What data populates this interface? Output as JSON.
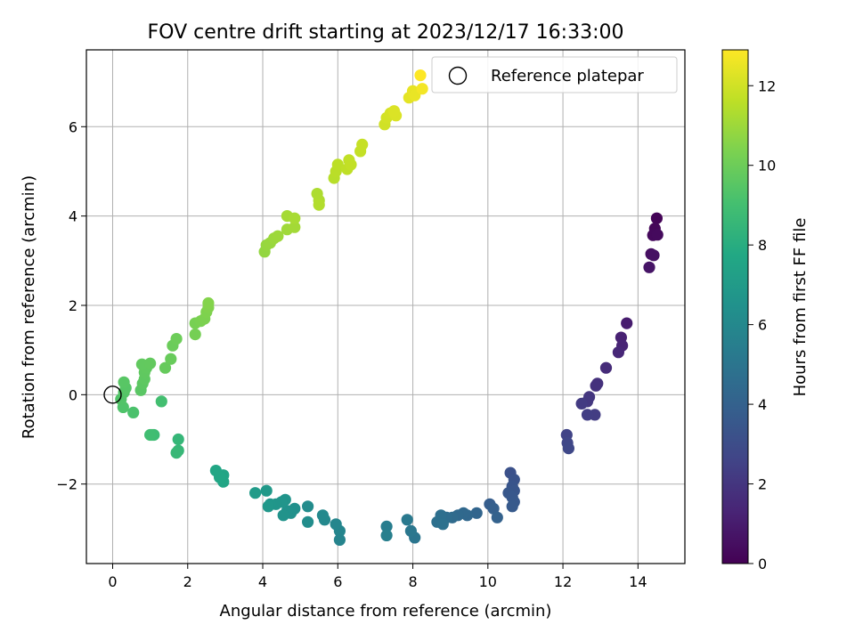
{
  "chart_data": {
    "type": "scatter",
    "title": "FOV centre drift starting at 2023/12/17 16:33:00",
    "xlabel": "Angular distance from reference (arcmin)",
    "ylabel": "Rotation from reference (arcmin)",
    "xlim": [
      -0.7,
      15.25
    ],
    "ylim": [
      -3.78,
      7.72
    ],
    "xticks": [
      "0",
      "2",
      "4",
      "6",
      "8",
      "10",
      "12",
      "14"
    ],
    "yticks": [
      "−2",
      "0",
      "2",
      "4",
      "6"
    ],
    "grid": true,
    "colormap": "viridis",
    "colorbar": {
      "label": "Hours from first FF file",
      "range": [
        0,
        12.9
      ],
      "ticks": [
        "0",
        "2",
        "4",
        "6",
        "8",
        "10",
        "12"
      ]
    },
    "legend": {
      "placement": "upper right",
      "entries": [
        {
          "label": "Reference platepar",
          "marker": "open-circle"
        }
      ]
    },
    "reference_point": {
      "x": 0,
      "y": 0
    },
    "points": [
      [
        14.5,
        3.95,
        0.1
      ],
      [
        14.45,
        3.72,
        0.2
      ],
      [
        14.4,
        3.57,
        0.3
      ],
      [
        14.52,
        3.58,
        0.35
      ],
      [
        14.35,
        3.15,
        0.5
      ],
      [
        14.42,
        3.12,
        0.6
      ],
      [
        14.3,
        2.85,
        0.7
      ],
      [
        13.7,
        1.6,
        1.0
      ],
      [
        13.55,
        1.28,
        1.2
      ],
      [
        13.58,
        1.1,
        1.3
      ],
      [
        13.48,
        0.95,
        1.4
      ],
      [
        13.15,
        0.6,
        1.6
      ],
      [
        12.92,
        0.25,
        1.8
      ],
      [
        12.88,
        0.2,
        1.85
      ],
      [
        12.7,
        -0.05,
        2.0
      ],
      [
        12.65,
        -0.15,
        2.1
      ],
      [
        12.5,
        -0.2,
        2.2
      ],
      [
        12.85,
        -0.45,
        2.3
      ],
      [
        12.65,
        -0.45,
        2.35
      ],
      [
        12.1,
        -0.9,
        2.6
      ],
      [
        12.12,
        -1.08,
        2.7
      ],
      [
        12.15,
        -1.2,
        2.75
      ],
      [
        10.6,
        -1.75,
        3.2
      ],
      [
        10.7,
        -1.9,
        3.3
      ],
      [
        10.65,
        -2.05,
        3.4
      ],
      [
        10.7,
        -2.15,
        3.45
      ],
      [
        10.55,
        -2.2,
        3.5
      ],
      [
        10.65,
        -2.3,
        3.55
      ],
      [
        10.7,
        -2.4,
        3.6
      ],
      [
        10.65,
        -2.5,
        3.65
      ],
      [
        10.05,
        -2.45,
        3.8
      ],
      [
        10.15,
        -2.55,
        3.9
      ],
      [
        10.25,
        -2.75,
        4.0
      ],
      [
        9.7,
        -2.65,
        4.2
      ],
      [
        9.45,
        -2.7,
        4.3
      ],
      [
        9.35,
        -2.65,
        4.35
      ],
      [
        9.2,
        -2.7,
        4.4
      ],
      [
        9.05,
        -2.75,
        4.5
      ],
      [
        8.9,
        -2.75,
        4.6
      ],
      [
        8.75,
        -2.7,
        4.7
      ],
      [
        8.65,
        -2.85,
        4.75
      ],
      [
        8.8,
        -2.9,
        4.8
      ],
      [
        8.05,
        -3.2,
        5.0
      ],
      [
        7.95,
        -3.05,
        5.1
      ],
      [
        7.85,
        -2.8,
        5.2
      ],
      [
        7.3,
        -2.95,
        5.4
      ],
      [
        7.3,
        -3.15,
        5.5
      ],
      [
        6.05,
        -3.25,
        5.8
      ],
      [
        6.05,
        -3.05,
        5.85
      ],
      [
        5.95,
        -2.9,
        5.9
      ],
      [
        5.65,
        -2.8,
        6.0
      ],
      [
        5.6,
        -2.7,
        6.05
      ],
      [
        5.2,
        -2.5,
        6.2
      ],
      [
        5.2,
        -2.85,
        6.25
      ],
      [
        4.85,
        -2.55,
        6.4
      ],
      [
        4.75,
        -2.65,
        6.45
      ],
      [
        4.65,
        -2.6,
        6.5
      ],
      [
        4.55,
        -2.7,
        6.55
      ],
      [
        4.6,
        -2.35,
        6.6
      ],
      [
        4.5,
        -2.4,
        6.65
      ],
      [
        4.35,
        -2.45,
        6.7
      ],
      [
        4.2,
        -2.45,
        6.75
      ],
      [
        4.15,
        -2.5,
        6.8
      ],
      [
        4.1,
        -2.15,
        6.9
      ],
      [
        3.8,
        -2.2,
        7.0
      ],
      [
        2.95,
        -1.8,
        7.5
      ],
      [
        2.95,
        -1.95,
        7.55
      ],
      [
        2.85,
        -1.85,
        7.6
      ],
      [
        2.75,
        -1.7,
        7.65
      ],
      [
        1.75,
        -1.0,
        8.5
      ],
      [
        1.75,
        -1.25,
        8.55
      ],
      [
        1.7,
        -1.3,
        8.6
      ],
      [
        1.1,
        -0.9,
        8.8
      ],
      [
        1.05,
        -0.9,
        8.85
      ],
      [
        1.0,
        -0.9,
        8.9
      ],
      [
        1.3,
        -0.15,
        9.0
      ],
      [
        0.55,
        -0.4,
        9.2
      ],
      [
        0.28,
        -0.28,
        9.3
      ],
      [
        0.22,
        -0.1,
        9.35
      ],
      [
        0.3,
        0.05,
        9.4
      ],
      [
        0.35,
        0.15,
        9.45
      ],
      [
        0.3,
        0.28,
        9.5
      ],
      [
        0.75,
        0.1,
        9.55
      ],
      [
        0.8,
        0.25,
        9.6
      ],
      [
        0.85,
        0.35,
        9.65
      ],
      [
        0.85,
        0.5,
        9.7
      ],
      [
        0.9,
        0.6,
        9.72
      ],
      [
        0.78,
        0.68,
        9.75
      ],
      [
        1.0,
        0.7,
        9.78
      ],
      [
        1.4,
        0.6,
        9.85
      ],
      [
        1.55,
        0.8,
        9.9
      ],
      [
        1.6,
        1.1,
        9.95
      ],
      [
        1.7,
        1.25,
        10.0
      ],
      [
        2.2,
        1.35,
        10.2
      ],
      [
        2.2,
        1.6,
        10.25
      ],
      [
        2.35,
        1.65,
        10.3
      ],
      [
        2.45,
        1.7,
        10.35
      ],
      [
        2.5,
        1.85,
        10.4
      ],
      [
        2.55,
        1.95,
        10.45
      ],
      [
        2.55,
        2.05,
        10.5
      ],
      [
        4.05,
        3.2,
        10.8
      ],
      [
        4.1,
        3.35,
        10.85
      ],
      [
        4.2,
        3.4,
        10.9
      ],
      [
        4.3,
        3.5,
        10.95
      ],
      [
        4.4,
        3.55,
        11.0
      ],
      [
        4.65,
        3.7,
        11.05
      ],
      [
        4.85,
        3.75,
        11.1
      ],
      [
        4.65,
        4.0,
        11.15
      ],
      [
        4.85,
        3.95,
        11.2
      ],
      [
        5.45,
        4.5,
        11.3
      ],
      [
        5.5,
        4.35,
        11.35
      ],
      [
        5.5,
        4.25,
        11.4
      ],
      [
        5.9,
        4.85,
        11.5
      ],
      [
        5.95,
        5.0,
        11.55
      ],
      [
        6.0,
        5.15,
        11.6
      ],
      [
        6.25,
        5.05,
        11.65
      ],
      [
        6.3,
        5.25,
        11.7
      ],
      [
        6.35,
        5.15,
        11.72
      ],
      [
        6.6,
        5.45,
        11.75
      ],
      [
        6.65,
        5.6,
        11.8
      ],
      [
        7.25,
        6.05,
        12.0
      ],
      [
        7.3,
        6.2,
        12.05
      ],
      [
        7.4,
        6.3,
        12.1
      ],
      [
        7.5,
        6.3,
        12.15
      ],
      [
        7.55,
        6.25,
        12.2
      ],
      [
        7.5,
        6.35,
        12.22
      ],
      [
        7.9,
        6.65,
        12.4
      ],
      [
        8.0,
        6.8,
        12.45
      ],
      [
        8.05,
        6.7,
        12.5
      ],
      [
        8.25,
        6.85,
        12.7
      ],
      [
        8.2,
        7.15,
        12.9
      ]
    ]
  }
}
